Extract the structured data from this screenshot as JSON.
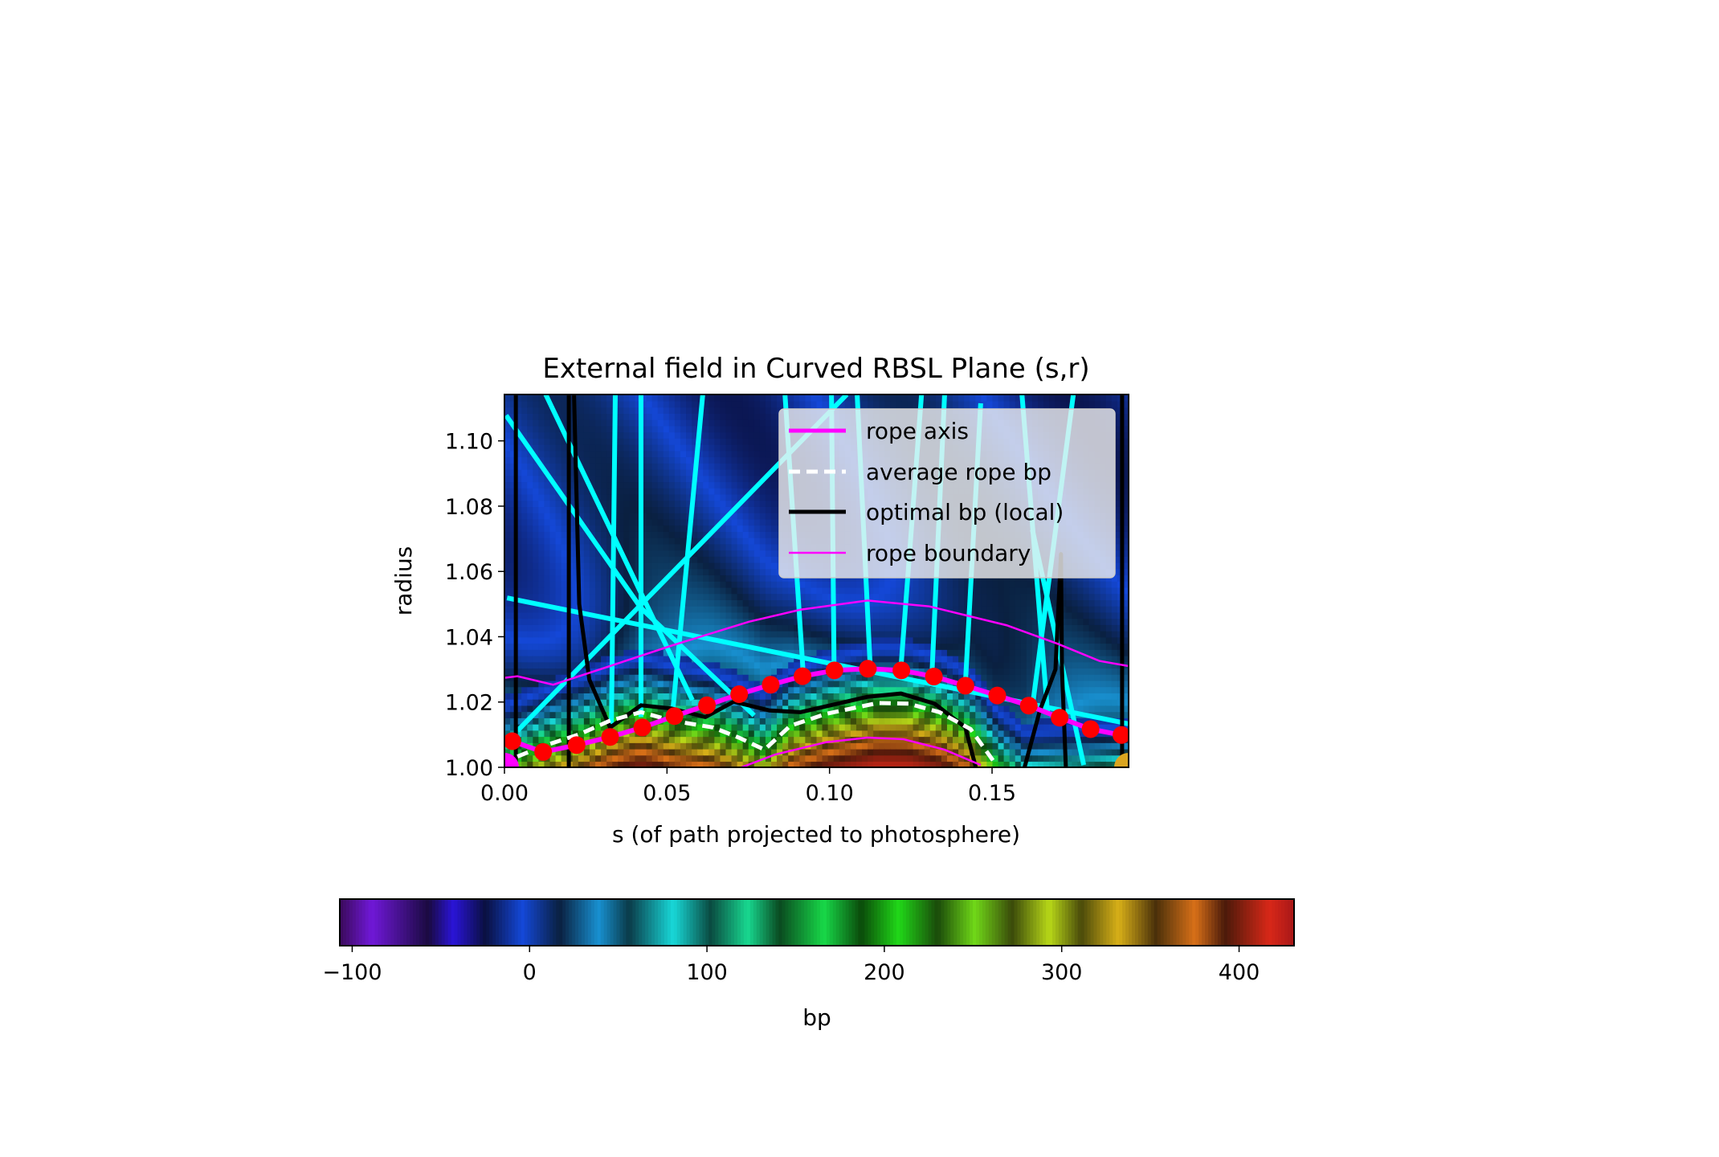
{
  "chart_data": {
    "type": "heatmap",
    "title": "External field in Curved RBSL Plane (s,r)",
    "xlabel": "s (of path projected to photosphere)",
    "ylabel": "radius",
    "xlim": [
      0,
      0.192
    ],
    "ylim": [
      1.0,
      1.1142
    ],
    "xticks": [
      {
        "v": 0,
        "label": "0.00"
      },
      {
        "v": 0.05,
        "label": "0.05"
      },
      {
        "v": 0.1,
        "label": "0.10"
      },
      {
        "v": 0.15,
        "label": "0.15"
      }
    ],
    "yticks": [
      {
        "v": 1.0,
        "label": "1.00"
      },
      {
        "v": 1.02,
        "label": "1.02"
      },
      {
        "v": 1.04,
        "label": "1.04"
      },
      {
        "v": 1.06,
        "label": "1.06"
      },
      {
        "v": 1.08,
        "label": "1.08"
      },
      {
        "v": 1.1,
        "label": "1.10"
      }
    ],
    "grid": false,
    "legend": {
      "placement": "upper-right",
      "entries": [
        {
          "label": "rope axis",
          "color": "#ff00ff",
          "style": "solid-thick"
        },
        {
          "label": "average rope bp",
          "color": "#ffffff",
          "style": "dashed"
        },
        {
          "label": "optimal bp (local)",
          "color": "#000000",
          "style": "solid-thick"
        },
        {
          "label": "rope boundary",
          "color": "#ff00ff",
          "style": "solid-thin"
        }
      ]
    },
    "colorbar": {
      "label": "bp",
      "vmin": -107,
      "vmax": 431,
      "ticks": [
        {
          "v": -100,
          "label": "−100"
        },
        {
          "v": 0,
          "label": "0"
        },
        {
          "v": 100,
          "label": "100"
        },
        {
          "v": 200,
          "label": "200"
        },
        {
          "v": 300,
          "label": "300"
        },
        {
          "v": 400,
          "label": "400"
        }
      ],
      "colormap": [
        [
          -107,
          "#3a0a5a"
        ],
        [
          -89,
          "#7018d8"
        ],
        [
          -57,
          "#1a0a40"
        ],
        [
          -43,
          "#2a14d8"
        ],
        [
          -25,
          "#0a1040"
        ],
        [
          -4,
          "#1448d8"
        ],
        [
          17,
          "#0a2040"
        ],
        [
          39,
          "#1890d0"
        ],
        [
          56,
          "#0a3a48"
        ],
        [
          81,
          "#18d8d8"
        ],
        [
          102,
          "#0a4a40"
        ],
        [
          123,
          "#18d890"
        ],
        [
          141,
          "#0a4a20"
        ],
        [
          166,
          "#18d848"
        ],
        [
          187,
          "#0a4a0a"
        ],
        [
          208,
          "#20d818"
        ],
        [
          230,
          "#1a4a0a"
        ],
        [
          251,
          "#70d818"
        ],
        [
          272,
          "#3a4a0a"
        ],
        [
          293,
          "#b8d818"
        ],
        [
          311,
          "#4a4a0a"
        ],
        [
          332,
          "#d8b018"
        ],
        [
          353,
          "#4a300a"
        ],
        [
          375,
          "#d87018"
        ],
        [
          392,
          "#4a1a0a"
        ],
        [
          417,
          "#d82818"
        ],
        [
          431,
          "#a81818"
        ]
      ]
    },
    "series": {
      "rope_axis": {
        "color": "#ff00ff",
        "marker_color": "#ff0000",
        "s": [
          0.0024,
          0.0119,
          0.0222,
          0.0325,
          0.0424,
          0.0523,
          0.0623,
          0.0722,
          0.0819,
          0.0917,
          0.1015,
          0.1118,
          0.1221,
          0.1321,
          0.1418,
          0.1516,
          0.1613,
          0.1708,
          0.1803,
          0.1898
        ],
        "r": [
          1.008,
          1.0047,
          1.0068,
          1.0093,
          1.0122,
          1.0157,
          1.019,
          1.0224,
          1.0253,
          1.0279,
          1.0297,
          1.0302,
          1.0297,
          1.0278,
          1.025,
          1.022,
          1.0189,
          1.0152,
          1.0117,
          1.0099
        ]
      },
      "average_rope_bp": {
        "color": "#ffffff",
        "s": [
          0.004,
          0.0119,
          0.023,
          0.0325,
          0.042,
          0.0515,
          0.0642,
          0.0721,
          0.08,
          0.0879,
          0.099,
          0.1148,
          0.1243,
          0.1338,
          0.1434,
          0.1513
        ],
        "r": [
          1.0033,
          1.0065,
          1.0101,
          1.0143,
          1.0169,
          1.0143,
          1.0122,
          1.0091,
          1.0054,
          1.0127,
          1.0164,
          1.0197,
          1.0195,
          1.0169,
          1.0117,
          1.0007
        ]
      },
      "optimal_bp_local": {
        "color": "#000000",
        "segments": [
          {
            "s": [
              0.0035,
              0.0035
            ],
            "r": [
              1.1142,
              1.0
            ]
          },
          {
            "s": [
              0.0198,
              0.0198
            ],
            "r": [
              1.1142,
              1.0
            ]
          },
          {
            "s": [
              0.0214,
              0.023,
              0.0261,
              0.0325,
              0.042,
              0.0515,
              0.0618,
              0.0705,
              0.0816,
              0.0911,
              0.1117,
              0.122,
              0.1323,
              0.1418,
              0.145
            ],
            "r": [
              1.1142,
              1.05,
              1.0269,
              1.0122,
              1.019,
              1.018,
              1.0154,
              1.0201,
              1.0174,
              1.0169,
              1.0216,
              1.0226,
              1.0195,
              1.0122,
              1.0
            ]
          },
          {
            "s": [
              0.16,
              0.1647,
              0.1695,
              0.1712,
              0.1715,
              0.1727
            ],
            "r": [
              1.0,
              1.0174,
              1.03,
              1.0653,
              1.03,
              1.0
            ]
          },
          {
            "s": [
              0.19,
              0.19
            ],
            "r": [
              1.1142,
              1.0
            ]
          }
        ]
      },
      "rope_boundary": {
        "color": "#ff00ff",
        "segments": [
          {
            "s": [
              0,
              0.004,
              0.015,
              0.0309,
              0.0515,
              0.0752,
              0.0911,
              0.1117,
              0.1307,
              0.1545,
              0.1703,
              0.183,
              0.1921
            ],
            "r": [
              1.0274,
              1.0279,
              1.0253,
              1.0305,
              1.0373,
              1.0446,
              1.0483,
              1.0511,
              1.0493,
              1.0435,
              1.0378,
              1.0326,
              1.031
            ]
          },
          {
            "s": [
              0.0729,
              0.0832,
              0.099,
              0.1117,
              0.1228,
              0.1354,
              0.1465
            ],
            "r": [
              1.0,
              1.0039,
              1.0077,
              1.0091,
              1.0086,
              1.0054,
              1.0007
            ]
          }
        ]
      },
      "field_lines": {
        "color": "#00ffff",
        "segments": [
          {
            "s": [
              0.0005,
              0.042,
              0.0768
            ],
            "r": [
              1.1078,
              1.0488,
              1.0159
            ]
          },
          {
            "s": [
              0.0127,
              0.0578
            ],
            "r": [
              1.1142,
              1.0206
            ]
          },
          {
            "s": [
              0.0341,
              0.0329
            ],
            "r": [
              1.1142,
              1.0133
            ]
          },
          {
            "s": [
              0.042,
              0.042
            ],
            "r": [
              1.1142,
              1.0154
            ]
          },
          {
            "s": [
              0.061,
              0.0515
            ],
            "r": [
              1.1142,
              1.0143
            ]
          },
          {
            "s": [
              0.0008,
              0.1921
            ],
            "r": [
              1.0519,
              1.0133
            ]
          },
          {
            "s": [
              0.004,
              0.1053
            ],
            "r": [
              1.0112,
              1.1142
            ]
          },
          {
            "s": [
              0.0863,
              0.0919
            ],
            "r": [
              1.1142,
              1.0289
            ]
          },
          {
            "s": [
              0.1006,
              0.1014
            ],
            "r": [
              1.1142,
              1.03
            ]
          },
          {
            "s": [
              0.1085,
              0.1125
            ],
            "r": [
              1.1142,
              1.031
            ]
          },
          {
            "s": [
              0.1283,
              0.122
            ],
            "r": [
              1.1142,
              1.031
            ]
          },
          {
            "s": [
              0.1354,
              0.1315
            ],
            "r": [
              1.1142,
              1.0284
            ]
          },
          {
            "s": [
              0.1465,
              0.1418
            ],
            "r": [
              1.1115,
              1.0258
            ]
          },
          {
            "s": [
              0.1592,
              0.1671
            ],
            "r": [
              1.1142,
              1.0164
            ]
          },
          {
            "s": [
              0.175,
              0.1624
            ],
            "r": [
              1.1142,
              1.0185
            ]
          },
          {
            "s": [
              0.1624,
              0.1782
            ],
            "r": [
              1.0728,
              1.0007
            ]
          }
        ]
      },
      "endpoints": [
        {
          "name": "start",
          "s": 0.0,
          "r": 1.0,
          "color": "#ff00ff"
        },
        {
          "name": "end",
          "s": 0.192,
          "r": 1.0,
          "color": "#daa520"
        }
      ]
    }
  }
}
